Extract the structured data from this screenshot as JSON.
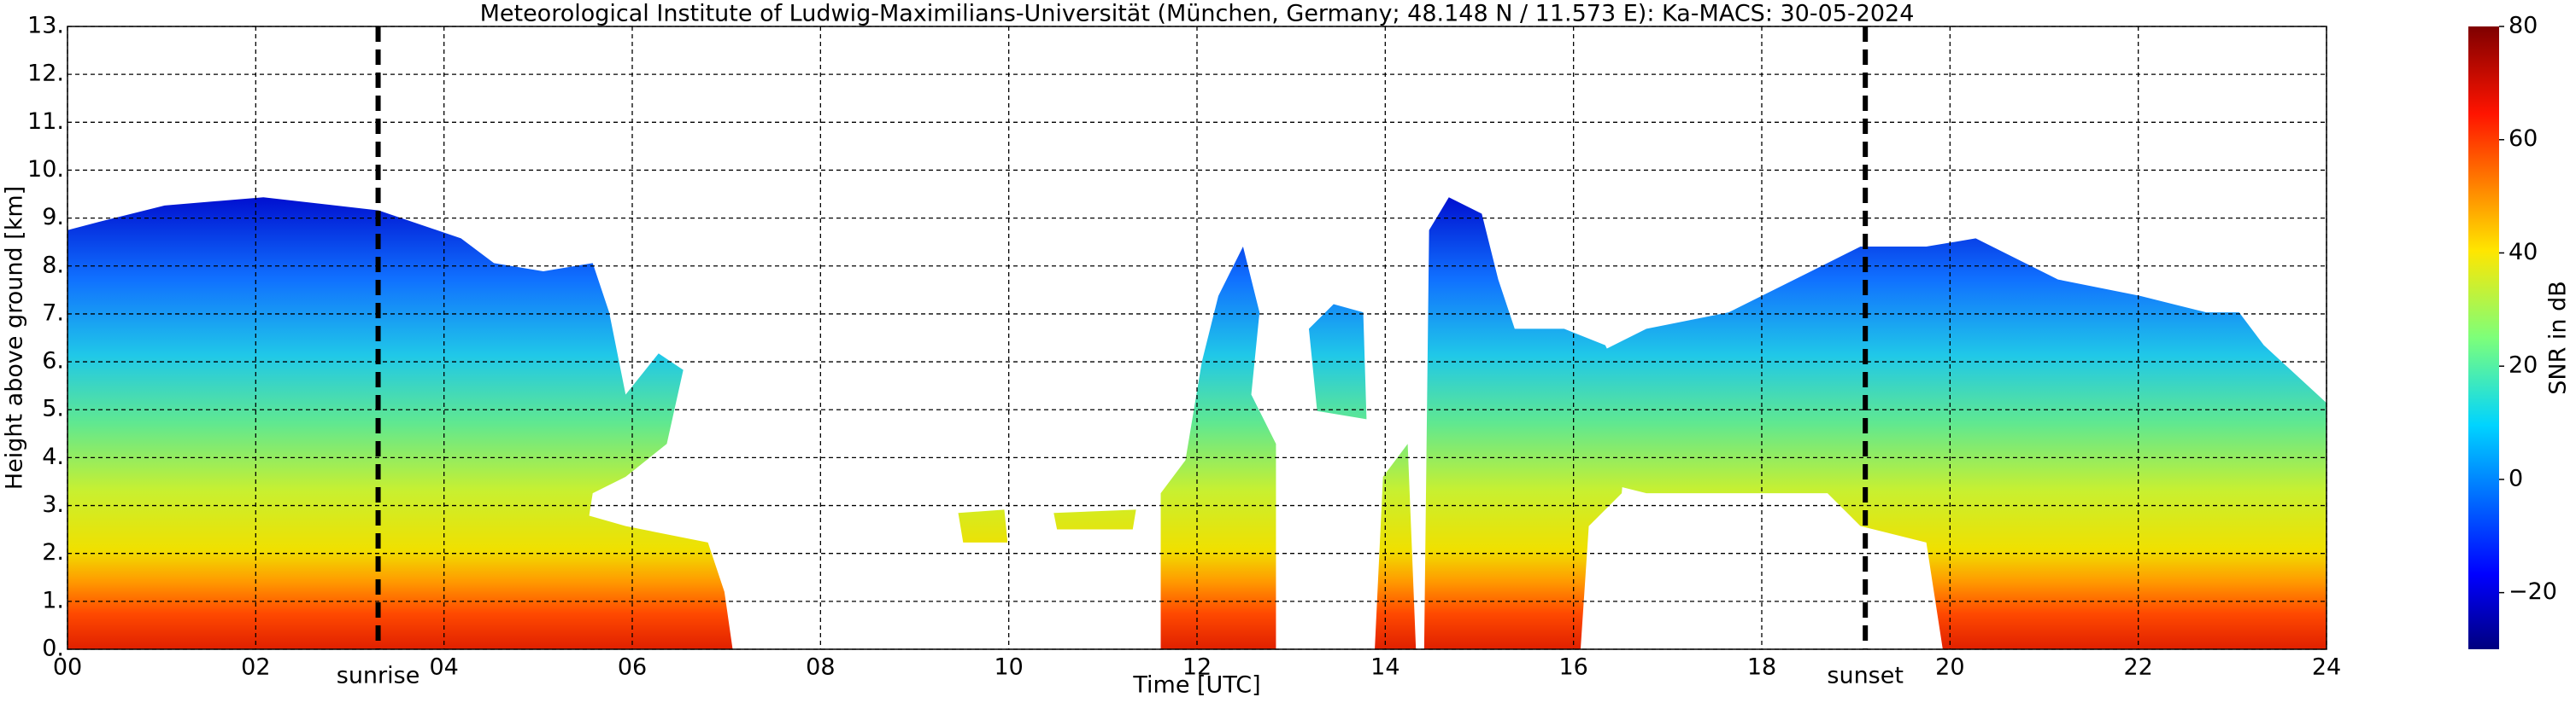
{
  "chart_data": {
    "type": "heatmap",
    "title": "Meteorological Institute of Ludwig-Maximilians-Universität (München, Germany; 48.148 N / 11.573 E):    Ka-MACS: 30-05-2024",
    "x_label": "Time [UTC]",
    "y_label": "Height above ground [km]",
    "xlim": [
      0,
      24
    ],
    "xticks": [
      {
        "value": 0,
        "label": "00"
      },
      {
        "value": 2,
        "label": "02"
      },
      {
        "value": 4,
        "label": "04"
      },
      {
        "value": 6,
        "label": "06"
      },
      {
        "value": 8,
        "label": "08"
      },
      {
        "value": 10,
        "label": "10"
      },
      {
        "value": 12,
        "label": "12"
      },
      {
        "value": 14,
        "label": "14"
      },
      {
        "value": 16,
        "label": "16"
      },
      {
        "value": 18,
        "label": "18"
      },
      {
        "value": 20,
        "label": "20"
      },
      {
        "value": 22,
        "label": "22"
      },
      {
        "value": 24,
        "label": "24"
      }
    ],
    "ylim": [
      0,
      13
    ],
    "yticks": [
      {
        "value": 0,
        "label": "0."
      },
      {
        "value": 1,
        "label": "1."
      },
      {
        "value": 2,
        "label": "2."
      },
      {
        "value": 3,
        "label": "3."
      },
      {
        "value": 4,
        "label": "4."
      },
      {
        "value": 5,
        "label": "5."
      },
      {
        "value": 6,
        "label": "6."
      },
      {
        "value": 7,
        "label": "7."
      },
      {
        "value": 8,
        "label": "8."
      },
      {
        "value": 9,
        "label": "9."
      },
      {
        "value": 10,
        "label": "10."
      },
      {
        "value": 11,
        "label": "11."
      },
      {
        "value": 12,
        "label": "12."
      },
      {
        "value": 13,
        "label": "13."
      }
    ],
    "grid": true,
    "annotations": [
      {
        "text": "sunrise",
        "x": 3.3
      },
      {
        "text": "sunset",
        "x": 19.1
      }
    ],
    "colorbar": {
      "label": "SNR in dB",
      "lim": [
        -30,
        80
      ],
      "ticks": [
        {
          "value": -20,
          "label": "−20"
        },
        0,
        20,
        40,
        60,
        80
      ]
    }
  }
}
